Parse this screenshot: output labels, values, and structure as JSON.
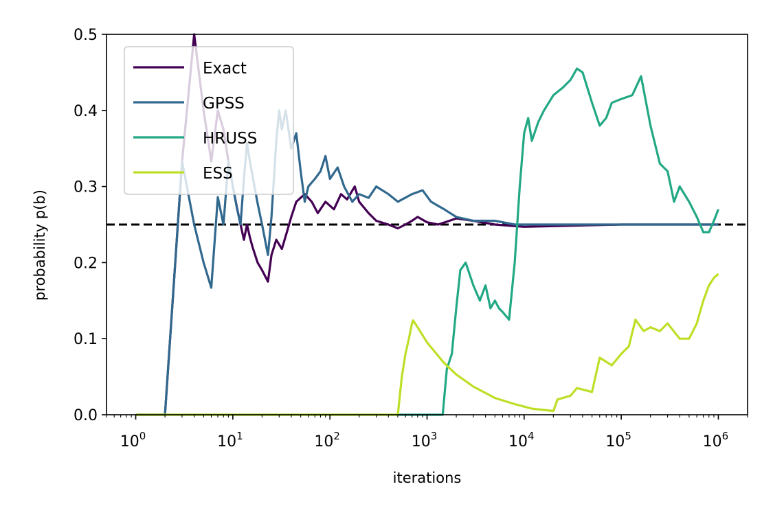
{
  "chart_data": {
    "type": "line",
    "xlabel": "iterations",
    "ylabel": "probability p(b)",
    "xscale": "log",
    "xlim": [
      0.5,
      2000000
    ],
    "ylim": [
      0,
      0.5
    ],
    "grid": false,
    "legend_position": "top-left",
    "x_ticks": [
      {
        "value": 1,
        "base": "10",
        "exp": "0"
      },
      {
        "value": 10,
        "base": "10",
        "exp": "1"
      },
      {
        "value": 100,
        "base": "10",
        "exp": "2"
      },
      {
        "value": 1000,
        "base": "10",
        "exp": "3"
      },
      {
        "value": 10000,
        "base": "10",
        "exp": "4"
      },
      {
        "value": 100000,
        "base": "10",
        "exp": "5"
      },
      {
        "value": 1000000,
        "base": "10",
        "exp": "6"
      }
    ],
    "y_ticks": [
      {
        "value": 0,
        "label": "0.0"
      },
      {
        "value": 0.1,
        "label": "0.1"
      },
      {
        "value": 0.2,
        "label": "0.2"
      },
      {
        "value": 0.3,
        "label": "0.3"
      },
      {
        "value": 0.4,
        "label": "0.4"
      },
      {
        "value": 0.5,
        "label": "0.5"
      }
    ],
    "reference_line": {
      "y": 0.25,
      "color": "#000000",
      "style": "dashed"
    },
    "series": [
      {
        "name": "Exact",
        "color": "#440154",
        "points": [
          [
            1,
            0
          ],
          [
            2,
            0
          ],
          [
            3,
            0.333
          ],
          [
            4,
            0.5
          ],
          [
            5,
            0.4
          ],
          [
            6,
            0.333
          ],
          [
            7,
            0.4
          ],
          [
            8,
            0.375
          ],
          [
            9,
            0.333
          ],
          [
            10,
            0.3
          ],
          [
            11,
            0.273
          ],
          [
            12,
            0.25
          ],
          [
            13,
            0.23
          ],
          [
            14,
            0.25
          ],
          [
            15,
            0.233
          ],
          [
            16,
            0.22
          ],
          [
            18,
            0.2
          ],
          [
            20,
            0.19
          ],
          [
            23,
            0.175
          ],
          [
            25,
            0.21
          ],
          [
            28,
            0.23
          ],
          [
            32,
            0.218
          ],
          [
            36,
            0.24
          ],
          [
            40,
            0.26
          ],
          [
            45,
            0.28
          ],
          [
            55,
            0.29
          ],
          [
            65,
            0.28
          ],
          [
            75,
            0.265
          ],
          [
            90,
            0.28
          ],
          [
            110,
            0.27
          ],
          [
            130,
            0.29
          ],
          [
            150,
            0.283
          ],
          [
            180,
            0.3
          ],
          [
            200,
            0.28
          ],
          [
            250,
            0.265
          ],
          [
            300,
            0.255
          ],
          [
            400,
            0.25
          ],
          [
            500,
            0.245
          ],
          [
            600,
            0.25
          ],
          [
            700,
            0.255
          ],
          [
            800,
            0.26
          ],
          [
            1000,
            0.253
          ],
          [
            1300,
            0.25
          ],
          [
            1700,
            0.255
          ],
          [
            2000,
            0.258
          ],
          [
            3000,
            0.255
          ],
          [
            5000,
            0.25
          ],
          [
            10000,
            0.247
          ],
          [
            100000,
            0.25
          ],
          [
            1000000,
            0.25
          ]
        ]
      },
      {
        "name": "GPSS",
        "color": "#31688e",
        "points": [
          [
            1,
            0
          ],
          [
            2,
            0
          ],
          [
            3,
            0.333
          ],
          [
            4,
            0.25
          ],
          [
            5,
            0.2
          ],
          [
            6,
            0.167
          ],
          [
            7,
            0.286
          ],
          [
            8,
            0.25
          ],
          [
            9,
            0.333
          ],
          [
            10,
            0.3
          ],
          [
            11,
            0.272
          ],
          [
            12,
            0.25
          ],
          [
            13,
            0.31
          ],
          [
            14,
            0.357
          ],
          [
            15,
            0.333
          ],
          [
            16,
            0.313
          ],
          [
            18,
            0.278
          ],
          [
            20,
            0.25
          ],
          [
            23,
            0.21
          ],
          [
            25,
            0.26
          ],
          [
            28,
            0.36
          ],
          [
            30,
            0.4
          ],
          [
            32,
            0.375
          ],
          [
            35,
            0.4
          ],
          [
            40,
            0.35
          ],
          [
            45,
            0.37
          ],
          [
            50,
            0.32
          ],
          [
            55,
            0.28
          ],
          [
            60,
            0.3
          ],
          [
            70,
            0.31
          ],
          [
            80,
            0.32
          ],
          [
            90,
            0.34
          ],
          [
            100,
            0.31
          ],
          [
            120,
            0.325
          ],
          [
            140,
            0.3
          ],
          [
            170,
            0.28
          ],
          [
            200,
            0.29
          ],
          [
            250,
            0.285
          ],
          [
            300,
            0.3
          ],
          [
            400,
            0.29
          ],
          [
            500,
            0.28
          ],
          [
            700,
            0.29
          ],
          [
            900,
            0.295
          ],
          [
            1100,
            0.28
          ],
          [
            1500,
            0.27
          ],
          [
            2000,
            0.26
          ],
          [
            3000,
            0.255
          ],
          [
            5000,
            0.255
          ],
          [
            8000,
            0.25
          ],
          [
            20000,
            0.25
          ],
          [
            100000,
            0.25
          ],
          [
            1000000,
            0.25
          ]
        ]
      },
      {
        "name": "HRUSS",
        "color": "#22a884",
        "points": [
          [
            1,
            0
          ],
          [
            1450,
            0
          ],
          [
            1600,
            0.06
          ],
          [
            1800,
            0.08
          ],
          [
            2000,
            0.14
          ],
          [
            2200,
            0.19
          ],
          [
            2500,
            0.2
          ],
          [
            3000,
            0.17
          ],
          [
            3500,
            0.15
          ],
          [
            4000,
            0.17
          ],
          [
            4500,
            0.14
          ],
          [
            5000,
            0.15
          ],
          [
            5500,
            0.14
          ],
          [
            6000,
            0.135
          ],
          [
            7000,
            0.125
          ],
          [
            8000,
            0.2
          ],
          [
            9000,
            0.3
          ],
          [
            10000,
            0.37
          ],
          [
            11000,
            0.39
          ],
          [
            12000,
            0.36
          ],
          [
            14000,
            0.385
          ],
          [
            16000,
            0.4
          ],
          [
            20000,
            0.42
          ],
          [
            25000,
            0.43
          ],
          [
            30000,
            0.44
          ],
          [
            35000,
            0.455
          ],
          [
            40000,
            0.45
          ],
          [
            50000,
            0.41
          ],
          [
            60000,
            0.38
          ],
          [
            70000,
            0.39
          ],
          [
            80000,
            0.41
          ],
          [
            100000,
            0.415
          ],
          [
            130000,
            0.42
          ],
          [
            160000,
            0.445
          ],
          [
            200000,
            0.38
          ],
          [
            250000,
            0.33
          ],
          [
            300000,
            0.32
          ],
          [
            350000,
            0.28
          ],
          [
            400000,
            0.3
          ],
          [
            500000,
            0.28
          ],
          [
            600000,
            0.26
          ],
          [
            700000,
            0.24
          ],
          [
            800000,
            0.24
          ],
          [
            900000,
            0.255
          ],
          [
            1000000,
            0.27
          ]
        ]
      },
      {
        "name": "ESS",
        "color": "#bddf26",
        "points": [
          [
            1,
            0
          ],
          [
            500,
            0
          ],
          [
            550,
            0.05
          ],
          [
            600,
            0.08
          ],
          [
            650,
            0.1
          ],
          [
            700,
            0.12
          ],
          [
            720,
            0.124
          ],
          [
            800,
            0.115
          ],
          [
            1000,
            0.095
          ],
          [
            1500,
            0.068
          ],
          [
            2000,
            0.053
          ],
          [
            3000,
            0.037
          ],
          [
            5000,
            0.022
          ],
          [
            8000,
            0.014
          ],
          [
            12000,
            0.008
          ],
          [
            20000,
            0.005
          ],
          [
            22000,
            0.02
          ],
          [
            30000,
            0.025
          ],
          [
            35000,
            0.035
          ],
          [
            50000,
            0.03
          ],
          [
            60000,
            0.075
          ],
          [
            80000,
            0.065
          ],
          [
            100000,
            0.08
          ],
          [
            120000,
            0.09
          ],
          [
            140000,
            0.125
          ],
          [
            170000,
            0.11
          ],
          [
            200000,
            0.115
          ],
          [
            250000,
            0.11
          ],
          [
            300000,
            0.12
          ],
          [
            400000,
            0.1
          ],
          [
            500000,
            0.1
          ],
          [
            600000,
            0.12
          ],
          [
            700000,
            0.15
          ],
          [
            800000,
            0.17
          ],
          [
            900000,
            0.18
          ],
          [
            1000000,
            0.185
          ]
        ]
      }
    ]
  }
}
